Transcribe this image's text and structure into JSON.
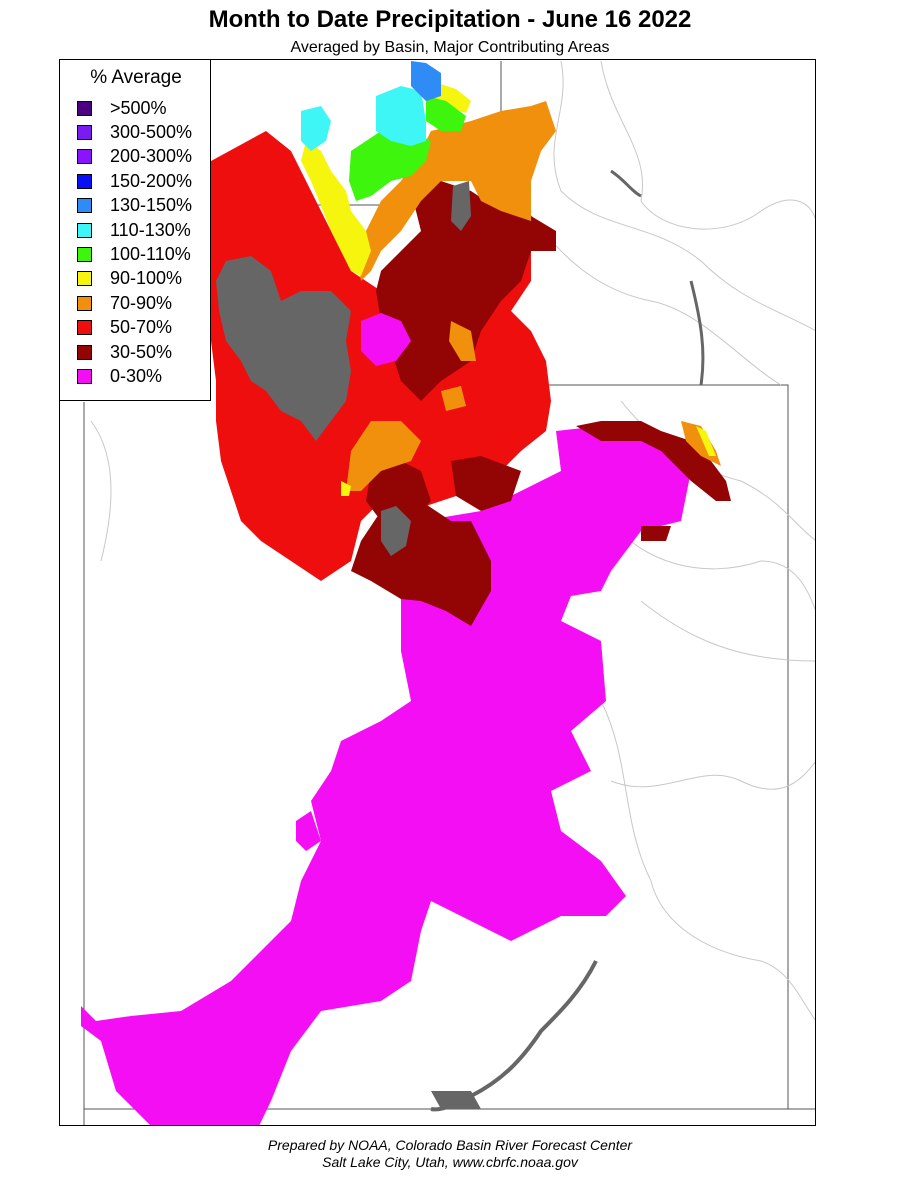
{
  "title": "Month to Date Precipitation - June 16 2022",
  "subtitle": "Averaged by Basin, Major Contributing Areas",
  "legend": {
    "title": "% Average",
    "items": [
      {
        "label": ">500%",
        "color": "#4b0082"
      },
      {
        "label": "300-500%",
        "color": "#7a1cf0"
      },
      {
        "label": "200-300%",
        "color": "#8a14ff"
      },
      {
        "label": "150-200%",
        "color": "#0a10f5"
      },
      {
        "label": "130-150%",
        "color": "#2f8bf5"
      },
      {
        "label": "110-130%",
        "color": "#3ff6f6"
      },
      {
        "label": "100-110%",
        "color": "#3df50d"
      },
      {
        "label": "90-100%",
        "color": "#f5f50d"
      },
      {
        "label": "70-90%",
        "color": "#f0900d"
      },
      {
        "label": "50-70%",
        "color": "#ee0e0e"
      },
      {
        "label": "30-50%",
        "color": "#930505"
      },
      {
        "label": "0-30%",
        "color": "#f40ef4"
      }
    ]
  },
  "no_data_color": "#666666",
  "footer": {
    "line1": "Prepared by NOAA, Colorado Basin River Forecast Center",
    "line2": "Salt Lake City, Utah, www.cbrfc.noaa.gov"
  }
}
